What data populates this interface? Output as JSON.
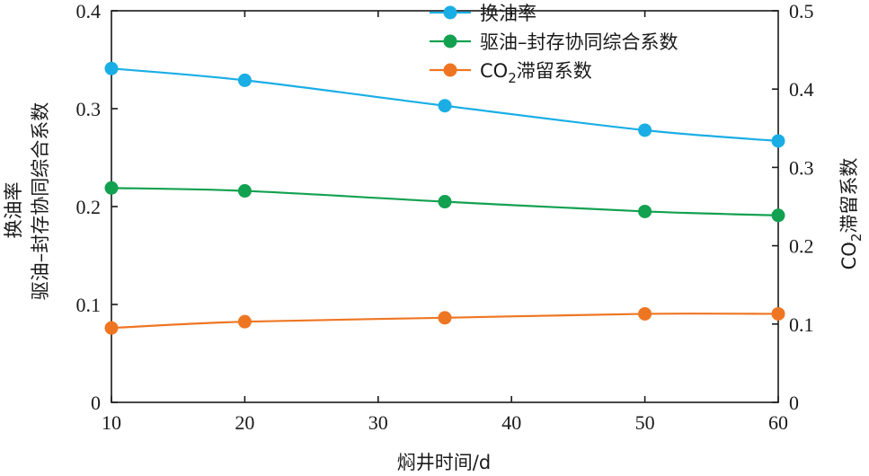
{
  "chart_data": {
    "type": "line",
    "x": [
      10,
      20,
      35,
      50,
      60
    ],
    "xlim": [
      10,
      60
    ],
    "xticks": [
      10,
      20,
      30,
      40,
      50,
      60
    ],
    "xlabel": "焖井时间/d",
    "ylabel_left_line1": "换油率",
    "ylabel_left_line2": "驱油–封存协同综合系数",
    "ylim_left": [
      0,
      0.4
    ],
    "yticks_left": [
      "0",
      "0.1",
      "0.2",
      "0.3",
      "0.4"
    ],
    "ylabel_right_prefix": "CO",
    "ylabel_right_sub": "2",
    "ylabel_right_suffix": "滞留系数",
    "ylim_right": [
      0,
      0.5
    ],
    "yticks_right": [
      "0",
      "0.1",
      "0.2",
      "0.3",
      "0.4",
      "0.5"
    ],
    "legend_position": "top-center",
    "grid": false,
    "series": [
      {
        "name": "换油率",
        "axis": "left",
        "color": "#1aaee5",
        "values": [
          0.341,
          0.329,
          0.303,
          0.278,
          0.267
        ]
      },
      {
        "name": "驱油–封存协同综合系数",
        "axis": "left",
        "color": "#12a150",
        "values": [
          0.219,
          0.216,
          0.205,
          0.195,
          0.191
        ]
      },
      {
        "name_prefix": "CO",
        "name_sub": "2",
        "name_suffix": "滞留系数",
        "axis": "right",
        "color": "#ee7623",
        "values": [
          0.095,
          0.103,
          0.108,
          0.113,
          0.113
        ]
      }
    ]
  }
}
